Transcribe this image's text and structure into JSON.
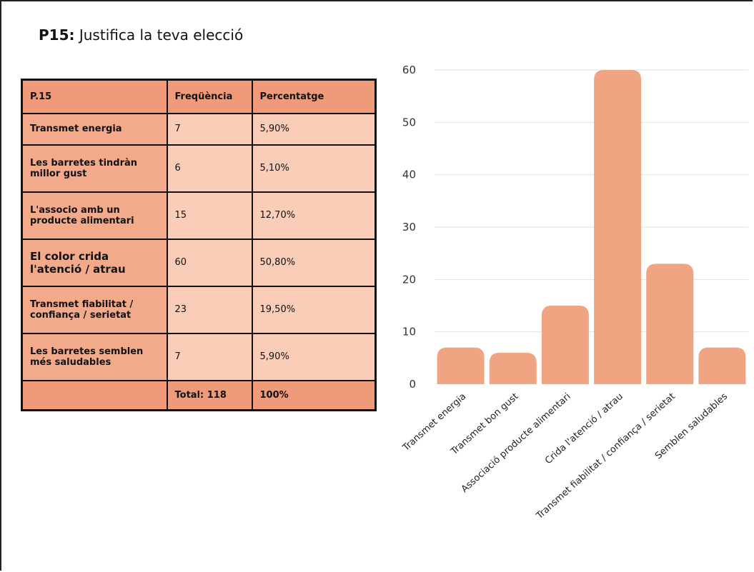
{
  "heading": {
    "number": "P15:",
    "text": " Justifica la teva elecció"
  },
  "table": {
    "headers": [
      "P.15",
      "Freqüència",
      "Percentatge"
    ],
    "rows": [
      {
        "label": "Transmet energia",
        "freq": "7",
        "pct": "5,90%"
      },
      {
        "label": "Les barretes tindràn millor gust",
        "freq": "6",
        "pct": "5,10%"
      },
      {
        "label": "L'associo amb un producte alimentari",
        "freq": "15",
        "pct": "12,70%"
      },
      {
        "label": "El color crida l'atenció / atrau",
        "freq": "60",
        "pct": "50,80%"
      },
      {
        "label": "Transmet fiabilitat / confiança / serietat",
        "freq": "23",
        "pct": "19,50%"
      },
      {
        "label": "Les barretes semblen més saludables",
        "freq": "7",
        "pct": "5,90%"
      }
    ],
    "total": {
      "label": "",
      "freq": "Total: 118",
      "pct": "100%"
    }
  },
  "colors": {
    "bar": "#f0a481",
    "grid": "#e2e2e2",
    "header_cell": "#ef9a78",
    "label_cell": "#f2aa8a",
    "value_cell": "#f9cdb8"
  },
  "chart_data": {
    "type": "bar",
    "categories": [
      "Transmet energia",
      "Transmet bon gust",
      "Associació producte alimentari",
      "Crida l'atenció / atrau",
      "Transmet fiabilitat / confiança / serietat",
      "Semblen saludables"
    ],
    "values": [
      7,
      6,
      15,
      60,
      23,
      7
    ],
    "ylim": [
      0,
      60
    ],
    "yticks": [
      0,
      10,
      20,
      30,
      40,
      50,
      60
    ],
    "grid": true,
    "legend": "none"
  }
}
